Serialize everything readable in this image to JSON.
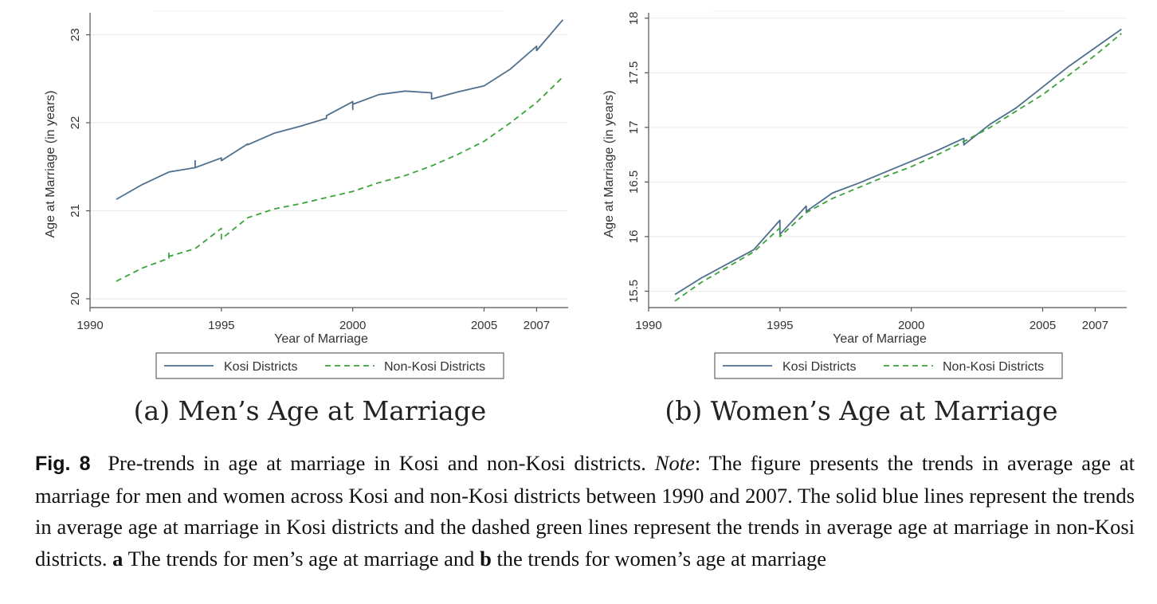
{
  "chart_data": [
    {
      "type": "line",
      "panel": "a",
      "caption": "(a) Men’s Age at Marriage",
      "xlabel": "Year of Marriage",
      "ylabel": "Age at Marriage (in years)",
      "xlim": [
        1990,
        2008.2
      ],
      "ylim": [
        19.9,
        23.25
      ],
      "x_ticks": [
        1990,
        1995,
        2000,
        2005,
        2007
      ],
      "y_ticks": [
        20,
        21,
        22,
        23
      ],
      "grid": true,
      "legend_position": "bottom",
      "series": [
        {
          "name": "Kosi Districts",
          "color": "#4f6f8f",
          "style": "solid",
          "x": [
            1991,
            1992,
            1993,
            1994,
            1994,
            1994,
            1995,
            1995,
            1996,
            1996,
            1997,
            1998,
            1999,
            1999,
            2000,
            2000,
            2000,
            2001,
            2002,
            2003,
            2003,
            2004,
            2005,
            2006,
            2007,
            2007,
            2008
          ],
          "y": [
            21.13,
            21.3,
            21.44,
            21.49,
            21.57,
            21.49,
            21.6,
            21.57,
            21.76,
            21.75,
            21.88,
            21.96,
            22.05,
            22.08,
            22.24,
            22.15,
            22.21,
            22.32,
            22.36,
            22.34,
            22.27,
            22.35,
            22.42,
            22.61,
            22.87,
            22.82,
            23.17
          ]
        },
        {
          "name": "Non-Kosi Districts",
          "color": "#3aa33a",
          "style": "dashed",
          "x": [
            1991,
            1992,
            1993,
            1993,
            1993,
            1994,
            1995,
            1995,
            1996,
            1997,
            1998,
            1999,
            2000,
            2001,
            2002,
            2003,
            2004,
            2005,
            2006,
            2007,
            2008
          ],
          "y": [
            20.2,
            20.35,
            20.46,
            20.53,
            20.48,
            20.57,
            20.8,
            20.68,
            20.92,
            21.02,
            21.08,
            21.15,
            21.22,
            21.32,
            21.4,
            21.51,
            21.64,
            21.79,
            22.0,
            22.23,
            22.52
          ]
        }
      ]
    },
    {
      "type": "line",
      "panel": "b",
      "caption": "(b) Women’s Age at Marriage",
      "xlabel": "Year of Marriage",
      "ylabel": "Age at Marriage (in years)",
      "xlim": [
        1990,
        2008.2
      ],
      "ylim": [
        15.35,
        18.05
      ],
      "x_ticks": [
        1990,
        1995,
        2000,
        2005,
        2007
      ],
      "y_ticks": [
        15.5,
        16,
        16.5,
        17,
        17.5,
        18
      ],
      "grid": true,
      "legend_position": "bottom",
      "series": [
        {
          "name": "Kosi Districts",
          "color": "#4f6f8f",
          "style": "solid",
          "x": [
            1991,
            1992,
            1993,
            1994,
            1995,
            1995,
            1996,
            1996,
            1997,
            1998,
            1999,
            2000,
            2001,
            2002,
            2002,
            2003,
            2004,
            2005,
            2006,
            2007,
            2008
          ],
          "y": [
            15.47,
            15.62,
            15.75,
            15.88,
            16.15,
            16.02,
            16.28,
            16.23,
            16.4,
            16.49,
            16.59,
            16.69,
            16.79,
            16.9,
            16.84,
            17.03,
            17.18,
            17.37,
            17.56,
            17.73,
            17.9
          ]
        },
        {
          "name": "Non-Kosi Districts",
          "color": "#3aa33a",
          "style": "dashed",
          "x": [
            1991,
            1992,
            1993,
            1994,
            1995,
            1995,
            1996,
            1997,
            1998,
            1999,
            2000,
            2001,
            2002,
            2003,
            2004,
            2005,
            2006,
            2007,
            2008
          ],
          "y": [
            15.41,
            15.58,
            15.72,
            15.86,
            16.08,
            16.0,
            16.22,
            16.35,
            16.45,
            16.55,
            16.64,
            16.75,
            16.87,
            17.0,
            17.15,
            17.3,
            17.48,
            17.66,
            17.86
          ]
        }
      ]
    }
  ],
  "figure_caption": {
    "label": "Fig. 8",
    "part1": "Pre-trends in age at marriage in Kosi and non-Kosi districts. ",
    "note_label": "Note",
    "part2": ": The figure presents the trends in average age at marriage for men and women across Kosi and non-Kosi districts between 1990 and 2007. The solid blue lines represent the trends in average age at marriage in Kosi districts and the dashed green lines represent the trends in average age at marriage in non-Kosi districts. ",
    "a_label": "a",
    "part3": " The trends for men’s age at marriage and ",
    "b_label": "b",
    "part4": " the trends for women’s age at marriage"
  }
}
